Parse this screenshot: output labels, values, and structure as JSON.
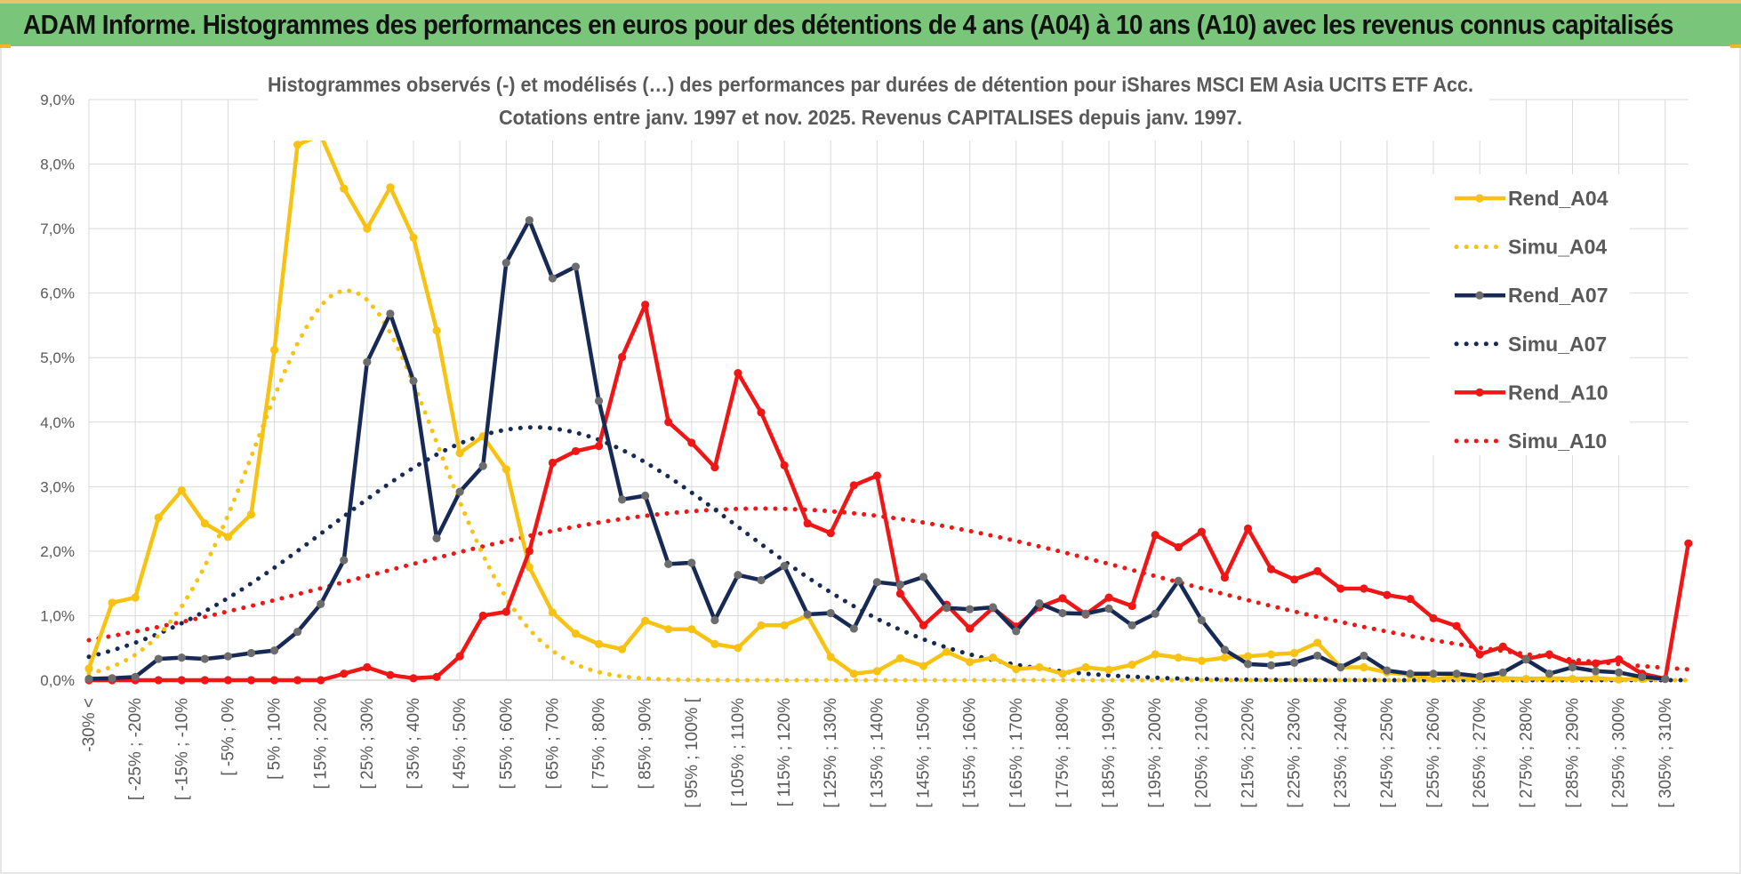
{
  "banner": {
    "title": "ADAM Informe. Histogrammes des performances en euros pour des détentions de 4 ans (A04) à 10 ans (A10) avec les revenus connus capitalisés"
  },
  "colors": {
    "banner_bg": "#79c57a",
    "a04": "#f8c212",
    "a07": "#172a56",
    "a10": "#f01616",
    "grid": "#d9d9d9",
    "text": "#595959"
  },
  "chart_data": {
    "type": "line",
    "title": "Histogrammes observés (-) et modélisés (…) des performances par durées de détention pour iShares MSCI EM Asia UCITS ETF Acc.",
    "subtitle": "Cotations entre janv. 1997 et nov. 2025. Revenus CAPITALISES depuis janv. 1997.",
    "xlabel": "",
    "ylabel": "",
    "ylim": [
      0,
      9
    ],
    "y_ticks": [
      "0,0%",
      "1,0%",
      "2,0%",
      "3,0%",
      "4,0%",
      "5,0%",
      "6,0%",
      "7,0%",
      "8,0%",
      "9,0%"
    ],
    "y_unit": "%",
    "legend_position": "right",
    "grid": true,
    "x_tick_labels": [
      "-30% <",
      "[ -25% ; -20%",
      "[ -15% ; -10%",
      "[ -5% ; 0%",
      "[ 5% ; 10%",
      "[ 15% ; 20%",
      "[ 25% ; 30%",
      "[ 35% ; 40%",
      "[ 45% ; 50%",
      "[ 55% ; 60%",
      "[ 65% ; 70%",
      "[ 75% ; 80%",
      "[ 85% ; 90%",
      "[ 95% ; 100% [",
      "[ 105% ; 110%",
      "[ 115% ; 120%",
      "[ 125% ; 130%",
      "[ 135% ; 140%",
      "[ 145% ; 150%",
      "[ 155% ; 160%",
      "[ 165% ; 170%",
      "[ 175% ; 180%",
      "[ 185% ; 190%",
      "[ 195% ; 200%",
      "[ 205% ; 210%",
      "[ 215% ; 220%",
      "[ 225% ; 230%",
      "[ 235% ; 240%",
      "[ 245% ; 250%",
      "[ 255% ; 260%",
      "[ 265% ; 270%",
      "[ 275% ; 280%",
      "[ 285% ; 290%",
      "[ 295% ; 300%",
      "[ 305% ; 310%"
    ],
    "n_categories": 69,
    "series": [
      {
        "name": "Rend_A04",
        "style": "solid",
        "color": "#f8c212",
        "values": [
          0.18,
          1.2,
          1.28,
          2.52,
          2.94,
          2.43,
          2.22,
          2.57,
          5.12,
          8.3,
          8.45,
          7.62,
          7.0,
          7.64,
          6.86,
          5.42,
          3.52,
          3.78,
          3.27,
          1.75,
          1.05,
          0.72,
          0.56,
          0.48,
          0.92,
          0.79,
          0.79,
          0.56,
          0.5,
          0.85,
          0.85,
          1.0,
          0.36,
          0.1,
          0.14,
          0.34,
          0.22,
          0.44,
          0.28,
          0.35,
          0.17,
          0.2,
          0.1,
          0.2,
          0.16,
          0.24,
          0.4,
          0.35,
          0.3,
          0.35,
          0.37,
          0.4,
          0.42,
          0.58,
          0.2,
          0.2,
          0.12,
          0.08,
          0.02,
          0.05,
          0.02,
          0.03,
          0.02,
          0.03,
          0.02,
          0.03,
          0.01,
          0.02,
          0.02
        ]
      },
      {
        "name": "Simu_A04",
        "style": "dotted",
        "color": "#f8c212",
        "mean": 25.6,
        "sd": 19.5,
        "peak": 6.05
      },
      {
        "name": "Rend_A07",
        "style": "solid",
        "color": "#172a56",
        "values": [
          0.02,
          0.03,
          0.05,
          0.33,
          0.35,
          0.33,
          0.37,
          0.42,
          0.46,
          0.75,
          1.18,
          1.86,
          4.93,
          5.68,
          4.64,
          2.2,
          2.92,
          3.32,
          6.47,
          7.13,
          6.23,
          6.41,
          4.33,
          2.8,
          2.86,
          1.8,
          1.82,
          0.93,
          1.63,
          1.55,
          1.77,
          1.02,
          1.04,
          0.8,
          1.52,
          1.48,
          1.6,
          1.12,
          1.1,
          1.13,
          0.76,
          1.19,
          1.04,
          1.03,
          1.11,
          0.85,
          1.03,
          1.54,
          0.93,
          0.47,
          0.25,
          0.23,
          0.27,
          0.38,
          0.2,
          0.38,
          0.15,
          0.1,
          0.1,
          0.1,
          0.06,
          0.12,
          0.32,
          0.1,
          0.2,
          0.14,
          0.12,
          0.05,
          0.02
        ]
      },
      {
        "name": "Simu_A07",
        "style": "dotted",
        "color": "#172a56",
        "mean": 66.0,
        "sd": 44.0,
        "peak": 3.92
      },
      {
        "name": "Rend_A10",
        "style": "solid",
        "color": "#f01616",
        "values": [
          0.0,
          0.0,
          0.0,
          0.0,
          0.0,
          0.0,
          0.0,
          0.0,
          0.0,
          0.0,
          0.0,
          0.1,
          0.2,
          0.08,
          0.03,
          0.05,
          0.37,
          1.0,
          1.06,
          2.0,
          3.37,
          3.55,
          3.63,
          5.01,
          5.82,
          4.0,
          3.68,
          3.3,
          4.76,
          4.15,
          3.33,
          2.43,
          2.28,
          3.02,
          3.17,
          1.34,
          0.85,
          1.17,
          0.8,
          1.12,
          0.83,
          1.13,
          1.27,
          1.02,
          1.28,
          1.15,
          2.25,
          2.06,
          2.3,
          1.59,
          2.35,
          1.72,
          1.56,
          1.69,
          1.42,
          1.42,
          1.32,
          1.26,
          0.96,
          0.84,
          0.4,
          0.52,
          0.33,
          0.4,
          0.26,
          0.26,
          0.32,
          0.1,
          0.02
        ]
      },
      {
        "name": "Simu_A10",
        "style": "dotted",
        "color": "#f01616",
        "mean": 115.0,
        "sd": 85.0,
        "peak": 2.66
      }
    ],
    "extra_points": [
      {
        "series": "Rend_A10",
        "value": 2.12,
        "position": "after last category"
      }
    ]
  }
}
